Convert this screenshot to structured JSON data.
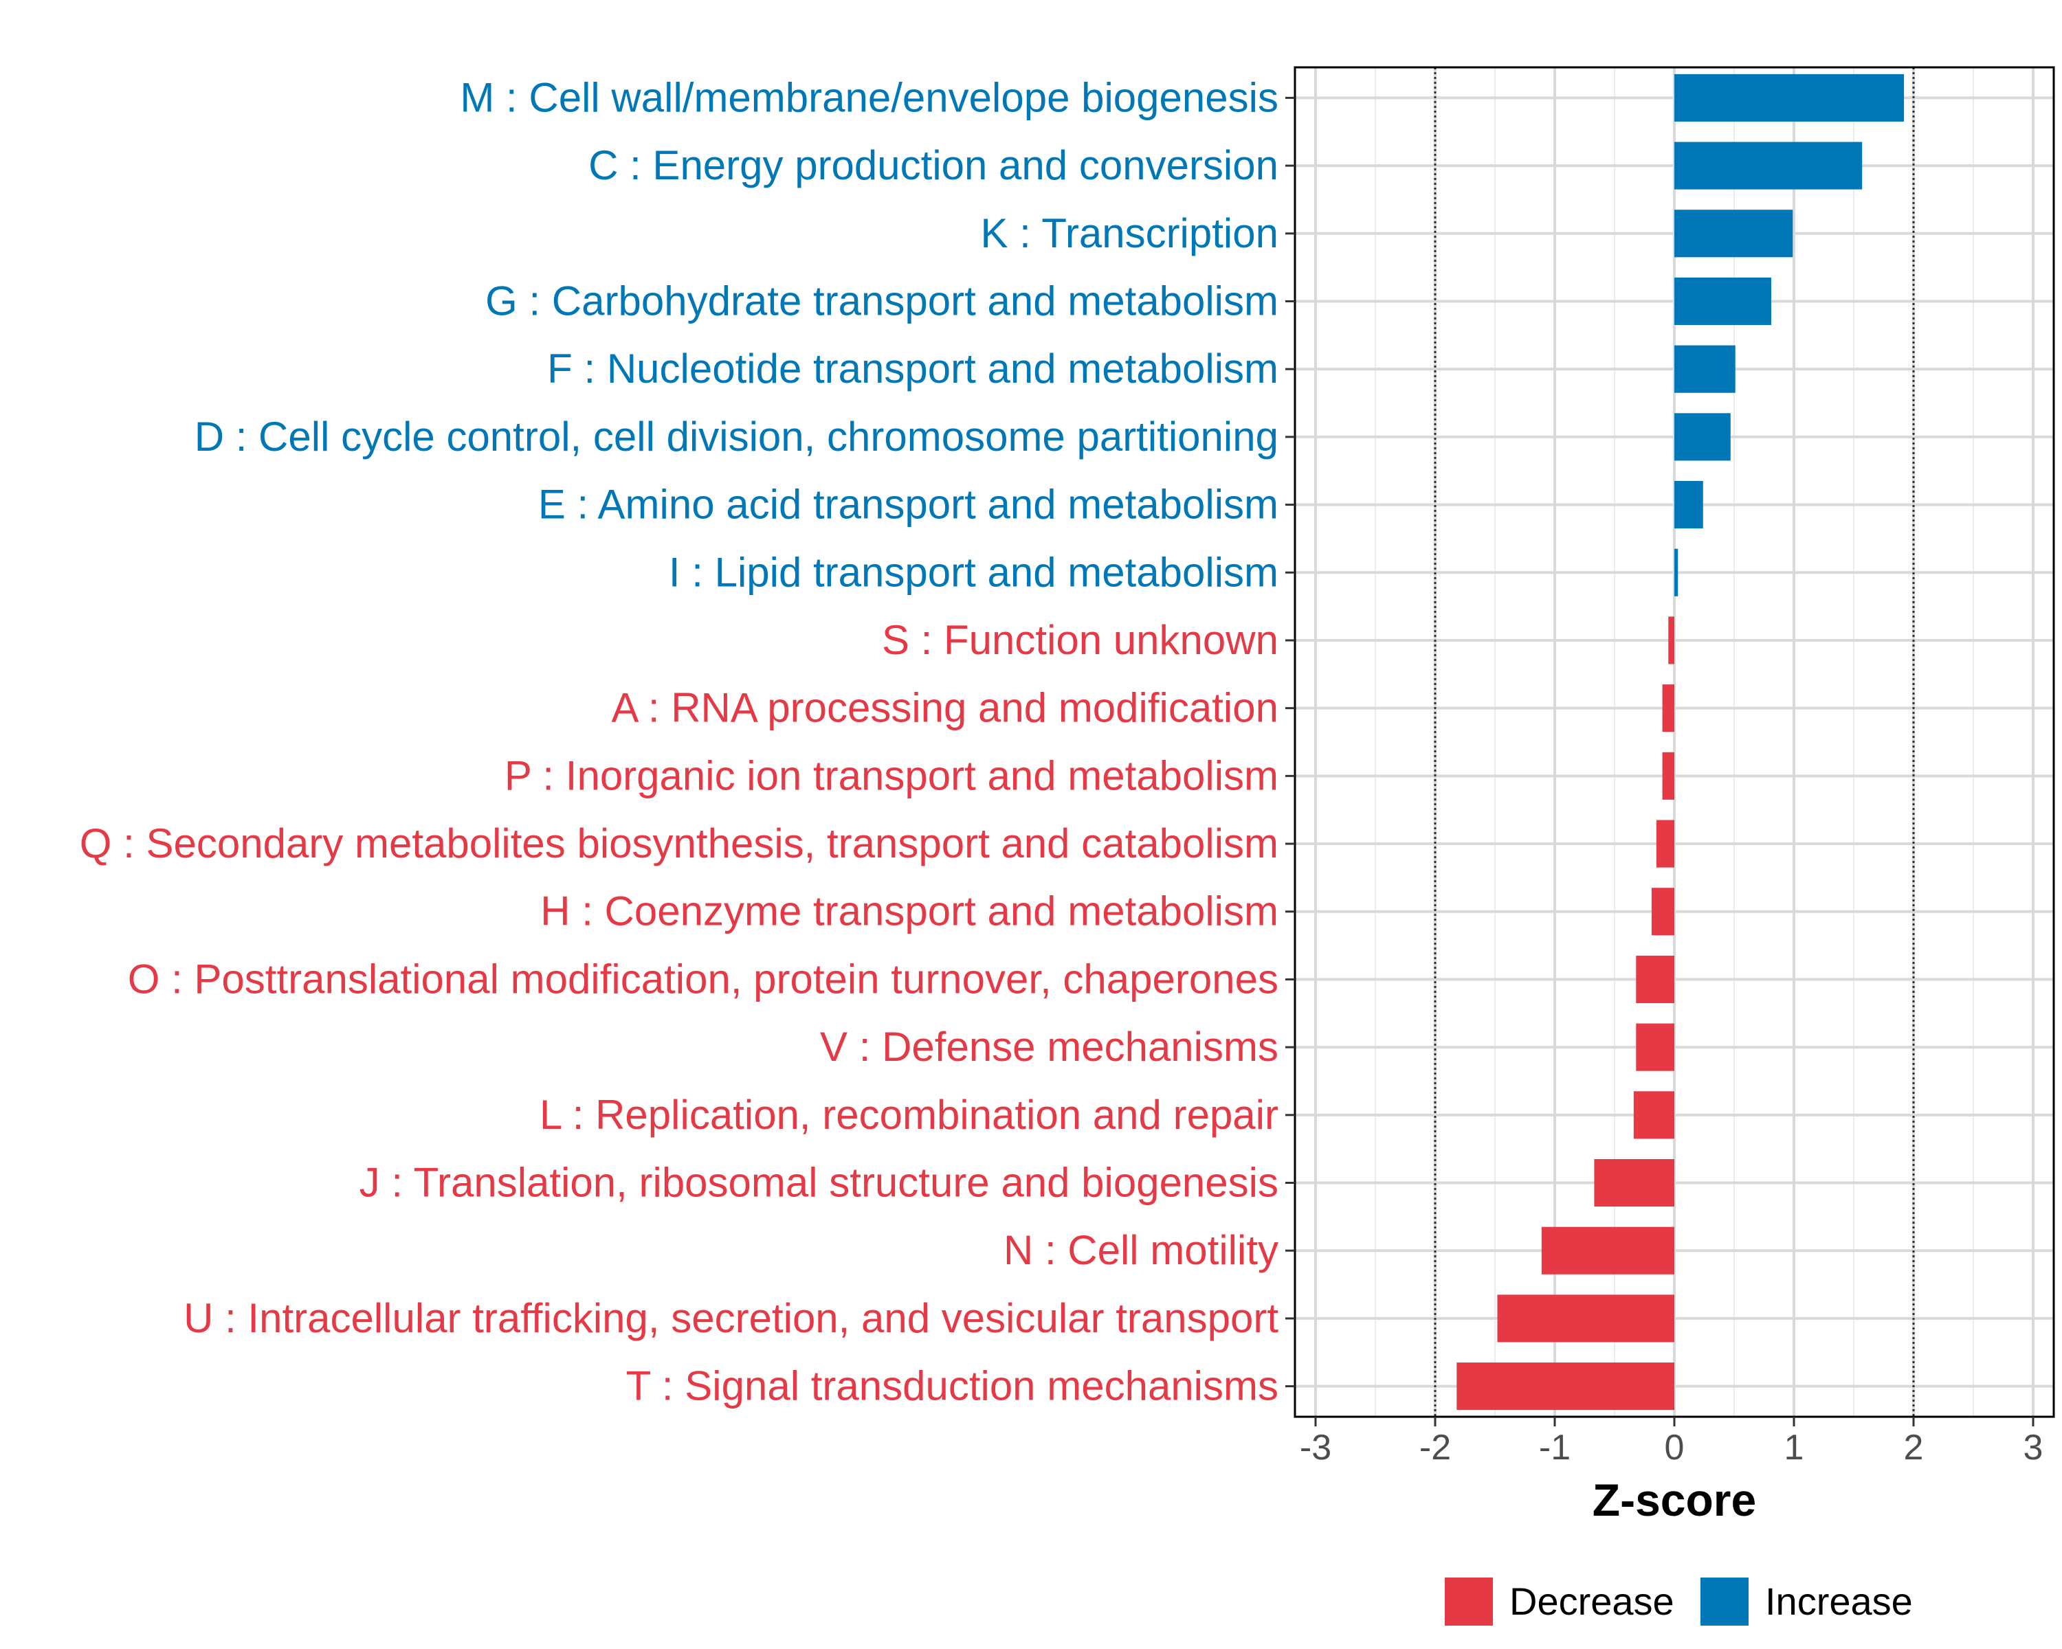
{
  "chart_data": {
    "type": "bar",
    "orientation": "horizontal",
    "title": "",
    "xlabel": "Z-score",
    "ylabel": "",
    "xlim": [
      -3,
      3
    ],
    "xticks": [
      "-3",
      "-2",
      "-1",
      "0",
      "1",
      "2",
      "3"
    ],
    "reference_lines": [
      -2,
      2
    ],
    "grid": true,
    "categories": [
      "M : Cell wall/membrane/envelope biogenesis",
      "C : Energy production and conversion",
      "K : Transcription",
      "G : Carbohydrate transport and metabolism",
      "F : Nucleotide transport and metabolism",
      "D : Cell cycle control, cell division, chromosome partitioning",
      "E : Amino acid transport and metabolism",
      "I : Lipid transport and metabolism",
      "S : Function unknown",
      "A : RNA processing and modification",
      "P : Inorganic ion transport and metabolism",
      "Q : Secondary metabolites biosynthesis, transport and catabolism",
      "H : Coenzyme transport and metabolism",
      "O : Posttranslational modification, protein turnover, chaperones",
      "V : Defense mechanisms",
      "L : Replication, recombination and repair",
      "J : Translation, ribosomal structure and biogenesis",
      "N : Cell motility",
      "U : Intracellular trafficking, secretion, and vesicular transport",
      "T : Signal transduction mechanisms"
    ],
    "values": [
      1.92,
      1.57,
      0.99,
      0.81,
      0.51,
      0.47,
      0.24,
      0.03,
      -0.05,
      -0.1,
      -0.1,
      -0.15,
      -0.19,
      -0.32,
      -0.32,
      -0.34,
      -0.67,
      -1.11,
      -1.48,
      -1.82
    ],
    "groups": [
      "Increase",
      "Increase",
      "Increase",
      "Increase",
      "Increase",
      "Increase",
      "Increase",
      "Increase",
      "Decrease",
      "Decrease",
      "Decrease",
      "Decrease",
      "Decrease",
      "Decrease",
      "Decrease",
      "Decrease",
      "Decrease",
      "Decrease",
      "Decrease",
      "Decrease"
    ],
    "legend": {
      "position": "bottom",
      "items": [
        {
          "name": "Decrease",
          "color": "#e63946"
        },
        {
          "name": "Increase",
          "color": "#0077b6"
        }
      ]
    },
    "colors": {
      "Decrease": "#e63946",
      "Increase": "#0077b6"
    }
  }
}
